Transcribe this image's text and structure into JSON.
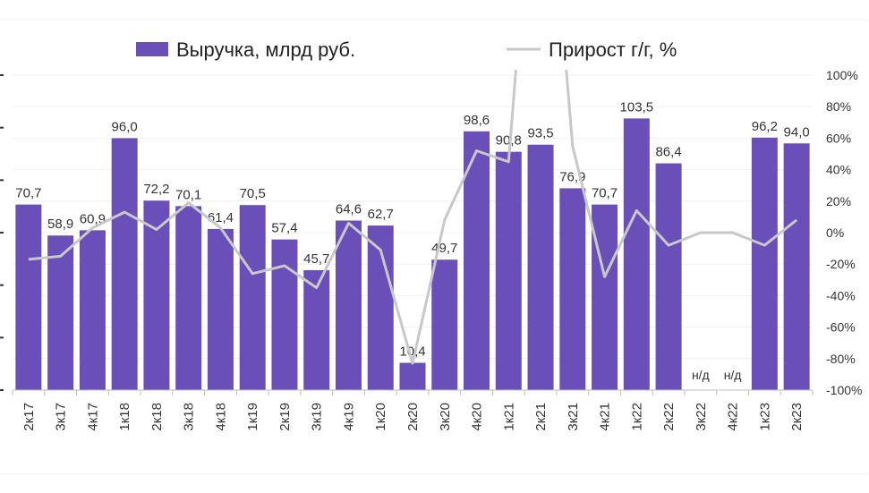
{
  "chart_data": {
    "type": "bar",
    "categories": [
      "2к17",
      "3к17",
      "4к17",
      "1к18",
      "2к18",
      "3к18",
      "4к18",
      "1к19",
      "2к19",
      "3к19",
      "4к19",
      "1к20",
      "2к20",
      "3к20",
      "4к20",
      "1к21",
      "2к21",
      "3к21",
      "4к21",
      "1к22",
      "2к22",
      "3к22",
      "4к22",
      "1к23",
      "2к23"
    ],
    "series": [
      {
        "name": "Выручка, млрд руб.",
        "type": "bar",
        "axis": "left",
        "color": "#6a4fb8",
        "values": [
          70.7,
          58.9,
          60.9,
          96.0,
          72.2,
          70.1,
          61.4,
          70.5,
          57.4,
          45.7,
          64.6,
          62.7,
          10.4,
          49.7,
          98.6,
          90.8,
          93.5,
          76.9,
          70.7,
          103.5,
          86.4,
          null,
          null,
          96.2,
          94.0
        ],
        "labels": [
          "70,7",
          "58,9",
          "60,9",
          "96,0",
          "72,2",
          "70,1",
          "61,4",
          "70,5",
          "57,4",
          "45,7",
          "64,6",
          "62,7",
          "10,4",
          "49,7",
          "98,6",
          "90,8",
          "93,5",
          "76,9",
          "70,7",
          "103,5",
          "86,4",
          "н/д",
          "н/д",
          "96,2",
          "94,0"
        ]
      },
      {
        "name": "Прирост г/г, %",
        "type": "line",
        "axis": "right",
        "color": "#c8c8c8",
        "values": [
          -17,
          -15,
          3,
          13,
          2,
          19,
          3,
          -26,
          -21,
          -35,
          6,
          -11,
          -83,
          8,
          52,
          45,
          300,
          55,
          -28,
          14,
          -8,
          0,
          0,
          -8,
          8
        ]
      }
    ],
    "right_axis": {
      "ylim": [
        -100,
        100
      ],
      "ticks": [
        -100,
        -80,
        -60,
        -40,
        -20,
        0,
        20,
        40,
        60,
        80,
        100
      ],
      "tick_labels": [
        "-100%",
        "-80%",
        "-60%",
        "-40%",
        "-20%",
        "0%",
        "20%",
        "40%",
        "60%",
        "80%",
        "100%"
      ]
    },
    "left_axis": {
      "ylim": [
        0,
        120
      ]
    },
    "legend_position": "top",
    "grid": true
  }
}
